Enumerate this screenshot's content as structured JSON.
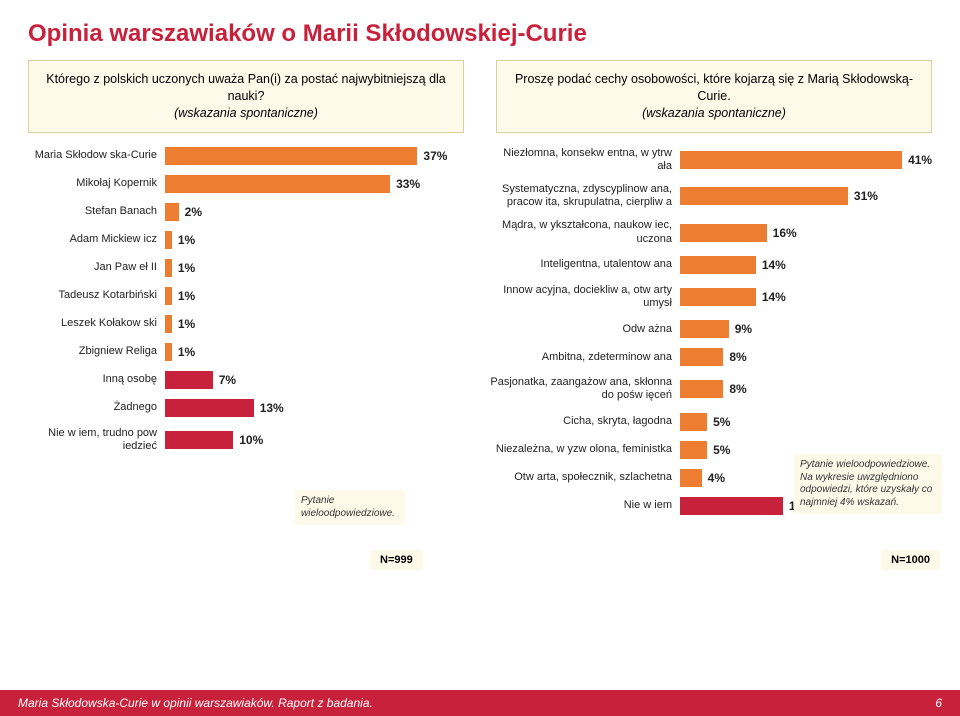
{
  "title": "Opinia warszawiaków o Marii Skłodowskiej-Curie",
  "left": {
    "question_main": "Którego z polskich uczonych uważa Pan(i) za postać najwybitniejszą dla nauki?",
    "question_sub": "(wskazania spontaniczne)",
    "n_label": "N=999",
    "note": "Pytanie wieloodpowiedziowe.",
    "max": 45,
    "rows": [
      {
        "label": "Maria Skłodow ska-Curie",
        "value": 37,
        "color": "#ed7d31"
      },
      {
        "label": "Mikołaj Kopernik",
        "value": 33,
        "color": "#ed7d31"
      },
      {
        "label": "Stefan Banach",
        "value": 2,
        "color": "#ed7d31"
      },
      {
        "label": "Adam Mickiew icz",
        "value": 1,
        "color": "#ed7d31"
      },
      {
        "label": "Jan Paw eł II",
        "value": 1,
        "color": "#ed7d31"
      },
      {
        "label": "Tadeusz Kotarbiński",
        "value": 1,
        "color": "#ed7d31"
      },
      {
        "label": "Leszek Kołakow ski",
        "value": 1,
        "color": "#ed7d31"
      },
      {
        "label": "Zbigniew Religa",
        "value": 1,
        "color": "#ed7d31"
      },
      {
        "label": "Inną osobę",
        "value": 7,
        "color": "#c8213b"
      },
      {
        "label": "Żadnego",
        "value": 13,
        "color": "#c8213b"
      },
      {
        "label": "Nie w iem, trudno pow iedzieć",
        "value": 10,
        "color": "#c8213b"
      }
    ]
  },
  "right": {
    "question_main": "Proszę podać cechy osobowości, które kojarzą się z Marią Skłodowską-Curie.",
    "question_sub": "(wskazania spontaniczne)",
    "n_label": "N=1000",
    "note": "Pytanie wieloodpowiedziowe. Na wykresie uwzględniono odpowiedzi, które uzyskały co najmniej 4% wskazań.",
    "max": 48,
    "rows": [
      {
        "label": "Niezłomna, konsekw entna, w ytrw ała",
        "value": 41,
        "color": "#ed7d31"
      },
      {
        "label": "Systematyczna, zdyscyplinow ana, pracow ita, skrupulatna, cierpliw a",
        "value": 31,
        "color": "#ed7d31"
      },
      {
        "label": "Mądra, w ykształcona, naukow iec, uczona",
        "value": 16,
        "color": "#ed7d31"
      },
      {
        "label": "Inteligentna, utalentow ana",
        "value": 14,
        "color": "#ed7d31"
      },
      {
        "label": "Innow acyjna, dociekliw a, otw arty umysł",
        "value": 14,
        "color": "#ed7d31"
      },
      {
        "label": "Odw ażna",
        "value": 9,
        "color": "#ed7d31"
      },
      {
        "label": "Ambitna, zdeterminow ana",
        "value": 8,
        "color": "#ed7d31"
      },
      {
        "label": "Pasjonatka, zaangażow ana, skłonna do pośw ięceń",
        "value": 8,
        "color": "#ed7d31"
      },
      {
        "label": "Cicha, skryta, łagodna",
        "value": 5,
        "color": "#ed7d31"
      },
      {
        "label": "Niezależna, w yzw olona, feministka",
        "value": 5,
        "color": "#ed7d31"
      },
      {
        "label": "Otw arta, społecznik, szlachetna",
        "value": 4,
        "color": "#ed7d31"
      },
      {
        "label": "Nie w iem",
        "value": 19,
        "color": "#c8213b"
      }
    ]
  },
  "footer": {
    "text": "Maria Skłodowska-Curie w opinii warszawiaków. Raport z badania.",
    "page": "6"
  }
}
